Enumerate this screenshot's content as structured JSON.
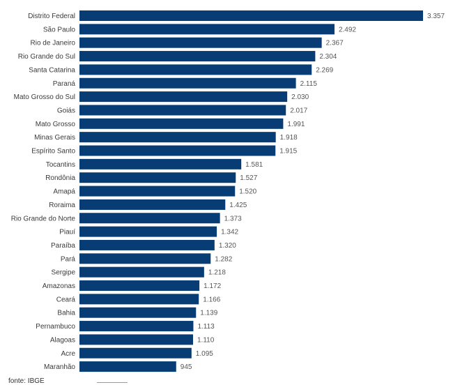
{
  "chart_data": {
    "type": "bar",
    "orientation": "horizontal",
    "title": "",
    "xlabel": "",
    "ylabel": "",
    "bar_color": "#083c74",
    "grid": false,
    "legend": "none",
    "xlim": [
      0,
      3357
    ],
    "categories": [
      "Distrito Federal",
      "São Paulo",
      "Rio de Janeiro",
      "Rio Grande do Sul",
      "Santa Catarina",
      "Paraná",
      "Mato Grosso do Sul",
      "Goiás",
      "Mato Grosso",
      "Minas Gerais",
      "Espírito Santo",
      "Tocantins",
      "Rondônia",
      "Amapá",
      "Roraima",
      "Rio Grande do Norte",
      "Piauí",
      "Paraíba",
      "Pará",
      "Sergipe",
      "Amazonas",
      "Ceará",
      "Bahia",
      "Pernambuco",
      "Alagoas",
      "Acre",
      "Maranhão"
    ],
    "values": [
      3357,
      2492,
      2367,
      2304,
      2269,
      2115,
      2030,
      2017,
      1991,
      1918,
      1915,
      1581,
      1527,
      1520,
      1425,
      1373,
      1342,
      1320,
      1282,
      1218,
      1172,
      1166,
      1139,
      1113,
      1110,
      1095,
      945
    ],
    "value_labels": [
      "3.357",
      "2.492",
      "2.367",
      "2.304",
      "2.269",
      "2.115",
      "2.030",
      "2.017",
      "1.991",
      "1.918",
      "1.915",
      "1.581",
      "1.527",
      "1.520",
      "1.425",
      "1.373",
      "1.342",
      "1.320",
      "1.282",
      "1.218",
      "1.172",
      "1.166",
      "1.139",
      "1.113",
      "1.110",
      "1.095",
      "945"
    ]
  },
  "source": "fonte: IBGE"
}
